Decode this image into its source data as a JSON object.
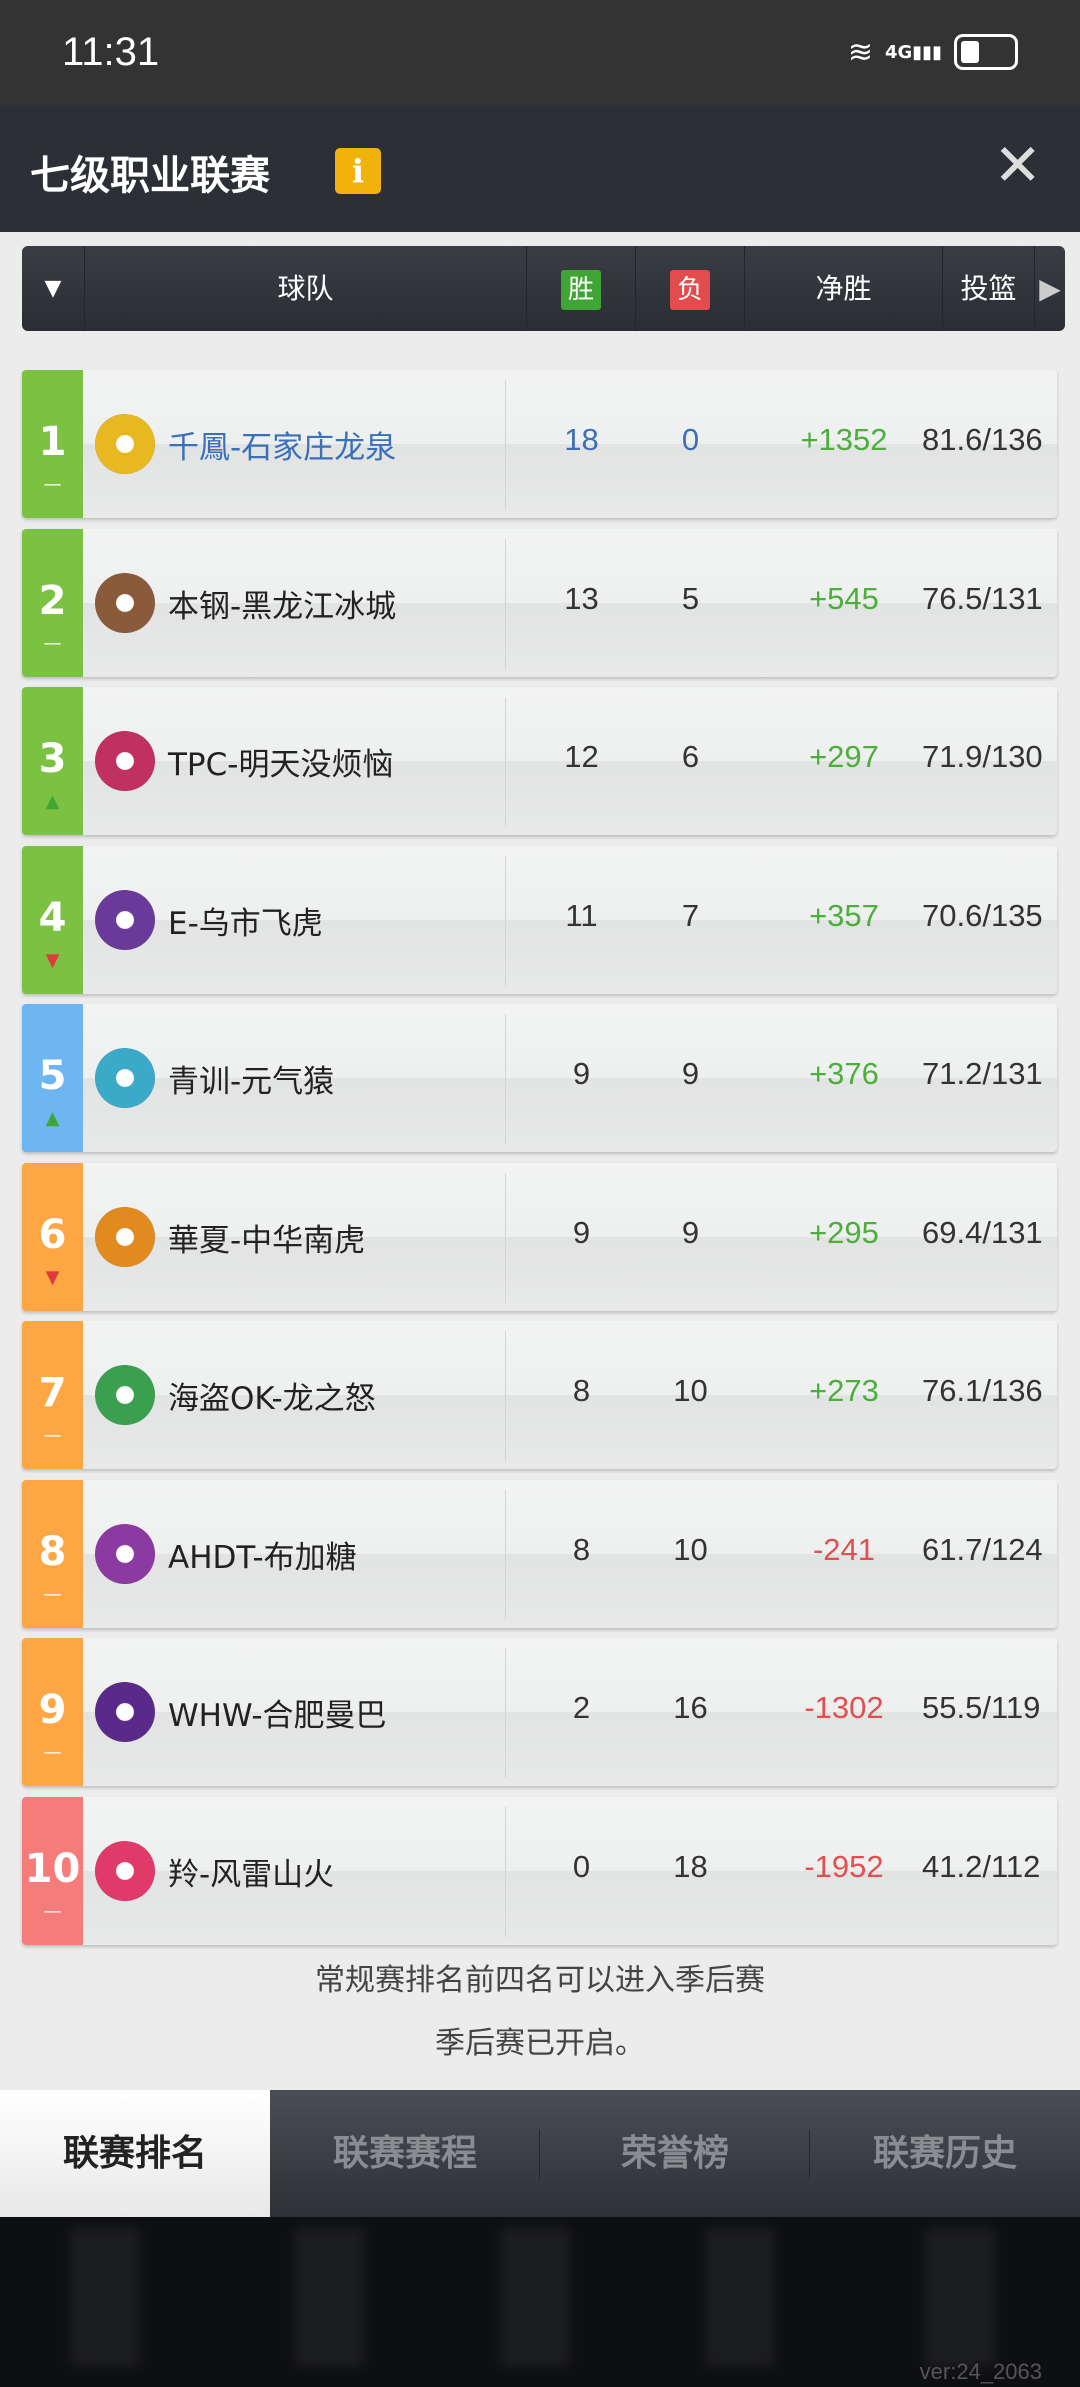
{
  "status_bar": {
    "time": "11:31",
    "network": "4G"
  },
  "header": {
    "title": "七级职业联赛",
    "info_label": "i",
    "close_label": "✕"
  },
  "table": {
    "columns": {
      "sort": "▼",
      "team": "球队",
      "wins": "胜",
      "losses": "负",
      "net": "净胜",
      "shooting": "投篮",
      "more": "▶"
    },
    "colors": {
      "wins_badge": "#3fa535",
      "losses_badge": "#e24c4c",
      "positive": "#4caf3c",
      "negative": "#e05050",
      "highlight_name": "#3b6fb8"
    },
    "rows": [
      {
        "rank": "1",
        "trend": "—",
        "zone_color": "#7cc242",
        "name": "千鳳-石家庄龙泉",
        "wins": "18",
        "losses": "0",
        "net": "+1352",
        "shooting": "81.6/136",
        "highlight": true,
        "logo_color": "#e8b820"
      },
      {
        "rank": "2",
        "trend": "—",
        "zone_color": "#7cc242",
        "name": "本钢-黑龙江冰城",
        "wins": "13",
        "losses": "5",
        "net": "+545",
        "shooting": "76.5/131",
        "logo_color": "#8a5a3a"
      },
      {
        "rank": "3",
        "trend": "▲",
        "zone_color": "#7cc242",
        "name": "TPC-明天没烦恼",
        "wins": "12",
        "losses": "6",
        "net": "+297",
        "shooting": "71.9/130",
        "logo_color": "#c03060"
      },
      {
        "rank": "4",
        "trend": "▼",
        "zone_color": "#7cc242",
        "name": "E-乌市飞虎",
        "wins": "11",
        "losses": "7",
        "net": "+357",
        "shooting": "70.6/135",
        "logo_color": "#6a3a9a"
      },
      {
        "rank": "5",
        "trend": "▲",
        "zone_color": "#6db6f2",
        "name": "青训-元气猿",
        "wins": "9",
        "losses": "9",
        "net": "+376",
        "shooting": "71.2/131",
        "logo_color": "#3aaac8"
      },
      {
        "rank": "6",
        "trend": "▼",
        "zone_color": "#fca743",
        "name": "華夏-中华南虎",
        "wins": "9",
        "losses": "9",
        "net": "+295",
        "shooting": "69.4/131",
        "logo_color": "#e08a20"
      },
      {
        "rank": "7",
        "trend": "—",
        "zone_color": "#fca743",
        "name": "海盗OK-龙之怒",
        "wins": "8",
        "losses": "10",
        "net": "+273",
        "shooting": "76.1/136",
        "logo_color": "#3aa050"
      },
      {
        "rank": "8",
        "trend": "—",
        "zone_color": "#fca743",
        "name": "AHDT-布加糖",
        "wins": "8",
        "losses": "10",
        "net": "-241",
        "shooting": "61.7/124",
        "logo_color": "#8a3aa0"
      },
      {
        "rank": "9",
        "trend": "—",
        "zone_color": "#fca743",
        "name": "WHW-合肥曼巴",
        "wins": "2",
        "losses": "16",
        "net": "-1302",
        "shooting": "55.5/119",
        "logo_color": "#5a2a8a"
      },
      {
        "rank": "10",
        "trend": "—",
        "zone_color": "#f67c7c",
        "name": "羚-风雷山火",
        "wins": "0",
        "losses": "18",
        "net": "-1952",
        "shooting": "41.2/112",
        "logo_color": "#e03a6a"
      }
    ]
  },
  "footer": {
    "line1": "常规赛排名前四名可以进入季后赛",
    "line2": "季后赛已开启。"
  },
  "tabs": [
    {
      "label": "联赛排名",
      "active": true
    },
    {
      "label": "联赛赛程"
    },
    {
      "label": "荣誉榜"
    },
    {
      "label": "联赛历史"
    }
  ],
  "version": "ver:24_2063"
}
